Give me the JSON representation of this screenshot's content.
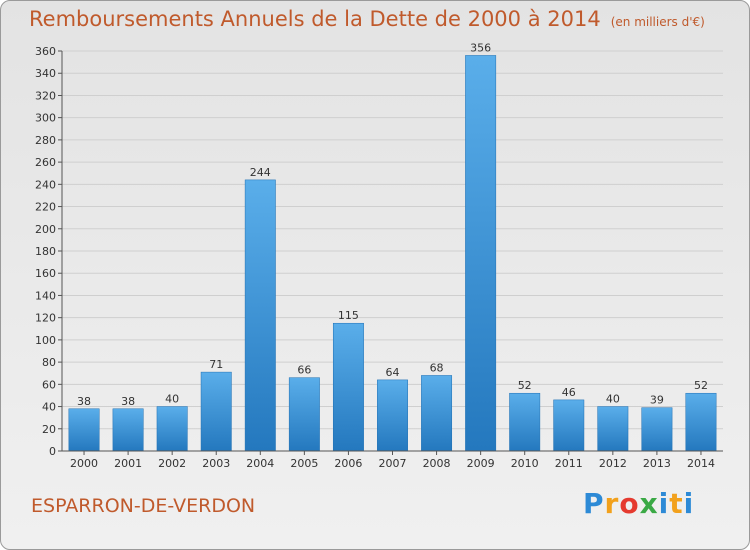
{
  "header": {
    "title": "Remboursements Annuels de la Dette de 2000 à 2014",
    "subtitle": "(en milliers d'€)"
  },
  "footer": {
    "town": "ESPARRON-DE-VERDON",
    "brand_letters": [
      "P",
      "r",
      "o",
      "x",
      "i",
      "t",
      "i"
    ]
  },
  "colors": {
    "title": "#c05a2c",
    "bar_light": "#5aaeea",
    "bar_dark": "#2478be",
    "grid": "#cfcfcf",
    "axis": "#555555"
  },
  "chart_data": {
    "type": "bar",
    "title": "Remboursements Annuels de la Dette de 2000 à 2014",
    "xlabel": "",
    "ylabel": "",
    "categories": [
      "2000",
      "2001",
      "2002",
      "2003",
      "2004",
      "2005",
      "2006",
      "2007",
      "2008",
      "2009",
      "2010",
      "2011",
      "2012",
      "2013",
      "2014"
    ],
    "values": [
      38,
      38,
      40,
      71,
      244,
      66,
      115,
      64,
      68,
      356,
      52,
      46,
      40,
      39,
      52
    ],
    "ylim": [
      0,
      360
    ],
    "yticks": [
      0,
      20,
      40,
      60,
      80,
      100,
      120,
      140,
      160,
      180,
      200,
      220,
      240,
      260,
      280,
      300,
      320,
      340,
      360
    ],
    "grid": true,
    "data_labels": true
  }
}
